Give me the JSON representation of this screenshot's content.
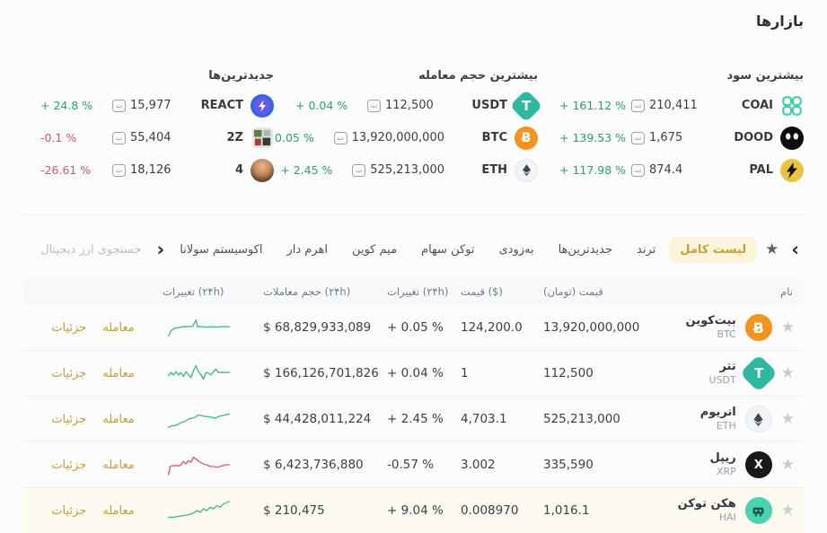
{
  "page": {
    "title": "بازارها"
  },
  "symbols": {
    "toman": "ت",
    "star": "★",
    "chevron_left": "‹",
    "chevron_right": "›",
    "btc_glyph": "Ƀ",
    "usdt_glyph": "T",
    "xrp_glyph": "X"
  },
  "colors": {
    "up": "#27a17c",
    "down": "#e0506a",
    "red": "#d24b57",
    "gold": "#c5a237",
    "spark_up": "#3db58d",
    "spark_down": "#d95a6d"
  },
  "summary": {
    "groups": [
      {
        "title": "بیشترین سود",
        "rows": [
          {
            "symbol": "COAI",
            "price_toman": "210,411",
            "change": "+ 161.12 %",
            "dir": "up"
          },
          {
            "symbol": "DOOD",
            "price_toman": "1,675",
            "change": "+ 139.53 %",
            "dir": "up"
          },
          {
            "symbol": "PAL",
            "price_toman": "874.4",
            "change": "+ 117.98 %",
            "dir": "up"
          }
        ]
      },
      {
        "title": "بیشترین حجم معامله",
        "rows": [
          {
            "symbol": "USDT",
            "price_toman": "112,500",
            "change": "+ 0.04 %",
            "dir": "up"
          },
          {
            "symbol": "BTC",
            "price_toman": "13,920,000,000",
            "change": "+ 0.05 %",
            "dir": "up"
          },
          {
            "symbol": "ETH",
            "price_toman": "525,213,000",
            "change": "+ 2.45 %",
            "dir": "up"
          }
        ]
      },
      {
        "title": "جدیدترین‌ها",
        "rows": [
          {
            "symbol": "REACT",
            "price_toman": "15,977",
            "change": "+ 24.8 %",
            "dir": "up"
          },
          {
            "symbol": "2Z",
            "price_toman": "55,404",
            "change": "-0.1 %",
            "dir": "down"
          },
          {
            "symbol": "4",
            "price_toman": "18,126",
            "change": "-26.61 %",
            "dir": "down"
          }
        ]
      }
    ]
  },
  "toolbar": {
    "search_placeholder": "جستجوی ارز دیجیتال",
    "tabs": [
      {
        "label": "لیست کامل",
        "active": true
      },
      {
        "label": "ترند",
        "active": false
      },
      {
        "label": "جدیدترین‌ها",
        "active": false
      },
      {
        "label": "به‌زودی",
        "active": false
      },
      {
        "label": "توکن سهام",
        "active": false
      },
      {
        "label": "میم کوین",
        "active": false
      },
      {
        "label": "اهرم دار",
        "active": false
      },
      {
        "label": "اکوسیستم سولانا",
        "active": false
      }
    ]
  },
  "table": {
    "headers": {
      "name": "نام",
      "price_toman": "قیمت (تومان)",
      "price_usd": "قیمت ($)",
      "change": "تغییرات (۲۴h)",
      "volume": "حجم معاملات (۲۴h)",
      "chart": "تغییرات (۲۴h)"
    },
    "actions": {
      "trade": "معامله",
      "details": "جزئیات"
    },
    "rows": [
      {
        "name": "بیت‌کوین",
        "symbol": "BTC",
        "price_toman": "13,920,000,000",
        "price_usd": "124,200.0",
        "usd_dir": "red",
        "change": "+ 0.05 %",
        "dir": "up",
        "volume": "$ 68,829,933,089",
        "spark": {
          "dir": "up",
          "points": [
            [
              2,
              24
            ],
            [
              5,
              18
            ],
            [
              9,
              15
            ],
            [
              14,
              14
            ],
            [
              20,
              13
            ],
            [
              26,
              13
            ],
            [
              31,
              12.5
            ],
            [
              35,
              5
            ],
            [
              37,
              13
            ],
            [
              42,
              13
            ],
            [
              48,
              13.5
            ],
            [
              54,
              13
            ],
            [
              60,
              13.5
            ],
            [
              66,
              13
            ],
            [
              75,
              13
            ]
          ]
        }
      },
      {
        "name": "تتر",
        "symbol": "USDT",
        "price_toman": "112,500",
        "price_usd": "1",
        "usd_dir": "",
        "change": "+ 0.04 %",
        "dir": "up",
        "volume": "$ 166,126,701,826",
        "spark": {
          "dir": "up",
          "points": [
            [
              2,
              17
            ],
            [
              5,
              13
            ],
            [
              8,
              16
            ],
            [
              11,
              12
            ],
            [
              14,
              16
            ],
            [
              17,
              13
            ],
            [
              20,
              18
            ],
            [
              23,
              12
            ],
            [
              26,
              16
            ],
            [
              29,
              19
            ],
            [
              32,
              11
            ],
            [
              35,
              5
            ],
            [
              38,
              12
            ],
            [
              41,
              16
            ],
            [
              44,
              21
            ],
            [
              47,
              13
            ],
            [
              50,
              14
            ],
            [
              53,
              16
            ],
            [
              56,
              12
            ],
            [
              59,
              9
            ],
            [
              62,
              13
            ],
            [
              66,
              13
            ],
            [
              75,
              13
            ]
          ]
        }
      },
      {
        "name": "اتریوم",
        "symbol": "ETH",
        "price_toman": "525,213,000",
        "price_usd": "4,703.1",
        "usd_dir": "",
        "change": "+ 2.45 %",
        "dir": "up",
        "volume": "$ 44,428,011,224",
        "spark": {
          "dir": "up",
          "points": [
            [
              2,
              24
            ],
            [
              6,
              22
            ],
            [
              10,
              22
            ],
            [
              14,
              20
            ],
            [
              18,
              18
            ],
            [
              22,
              17
            ],
            [
              26,
              14
            ],
            [
              30,
              13
            ],
            [
              34,
              12
            ],
            [
              38,
              9
            ],
            [
              42,
              10
            ],
            [
              46,
              11
            ],
            [
              50,
              11
            ],
            [
              54,
              12
            ],
            [
              58,
              13
            ],
            [
              62,
              11
            ],
            [
              66,
              10
            ],
            [
              75,
              8
            ]
          ]
        }
      },
      {
        "name": "ریپل",
        "symbol": "XRP",
        "price_toman": "335,590",
        "price_usd": "3.002",
        "usd_dir": "",
        "change": "-0.57 %",
        "dir": "down",
        "volume": "$ 6,423,736,880",
        "spark": {
          "dir": "down",
          "points": [
            [
              2,
              26
            ],
            [
              4,
              16
            ],
            [
              8,
              15
            ],
            [
              12,
              15
            ],
            [
              16,
              15
            ],
            [
              20,
              10
            ],
            [
              23,
              13
            ],
            [
              26,
              9
            ],
            [
              29,
              11
            ],
            [
              32,
              5
            ],
            [
              36,
              8
            ],
            [
              40,
              11
            ],
            [
              44,
              13
            ],
            [
              48,
              14
            ],
            [
              52,
              16
            ],
            [
              56,
              16
            ],
            [
              60,
              17
            ],
            [
              64,
              16
            ],
            [
              70,
              14
            ],
            [
              75,
              14
            ]
          ]
        }
      },
      {
        "name": "هکن توکن",
        "symbol": "HAI",
        "price_toman": "1,016.1",
        "price_usd": "0.008970",
        "usd_dir": "",
        "change": "+ 9.04 %",
        "dir": "up",
        "volume": "$ 210,475",
        "spark": {
          "dir": "up",
          "points": [
            [
              2,
              22
            ],
            [
              8,
              22
            ],
            [
              14,
              21
            ],
            [
              20,
              20
            ],
            [
              26,
              19
            ],
            [
              32,
              17
            ],
            [
              36,
              14
            ],
            [
              40,
              16
            ],
            [
              44,
              12
            ],
            [
              48,
              14
            ],
            [
              52,
              10
            ],
            [
              56,
              12
            ],
            [
              60,
              8
            ],
            [
              64,
              10
            ],
            [
              68,
              6
            ],
            [
              75,
              3
            ]
          ]
        }
      }
    ]
  }
}
